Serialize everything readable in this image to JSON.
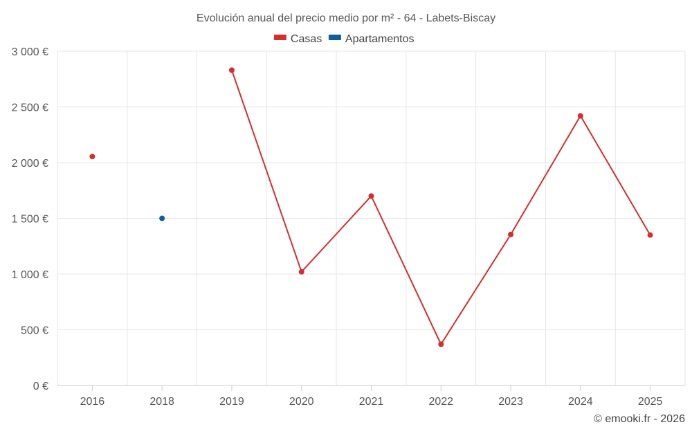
{
  "chart_data": {
    "type": "line",
    "title": "Evolución anual del precio medio por m² - 64 - Labets-Biscay",
    "categories": [
      "2016",
      "2018",
      "2019",
      "2020",
      "2021",
      "2022",
      "2023",
      "2024",
      "2025"
    ],
    "series": [
      {
        "name": "Casas",
        "color": "#d32f2f",
        "values": [
          2055,
          null,
          2830,
          1020,
          1700,
          370,
          1355,
          2420,
          1350
        ]
      },
      {
        "name": "Apartamentos",
        "color": "#0d5f99",
        "values": [
          null,
          1500,
          null,
          null,
          null,
          null,
          null,
          null,
          null
        ]
      }
    ],
    "y_ticks": [
      {
        "value": 0,
        "label": "0 €"
      },
      {
        "value": 500,
        "label": "500 €"
      },
      {
        "value": 1000,
        "label": "1 000 €"
      },
      {
        "value": 1500,
        "label": "1 500 €"
      },
      {
        "value": 2000,
        "label": "2 000 €"
      },
      {
        "value": 2500,
        "label": "2 500 €"
      },
      {
        "value": 3000,
        "label": "3 000 €"
      }
    ],
    "ylim": [
      0,
      3000
    ],
    "xlabel": "",
    "ylabel": "",
    "legend_position": "top-center",
    "grid": true
  },
  "credit": "© emooki.fr - 2026"
}
